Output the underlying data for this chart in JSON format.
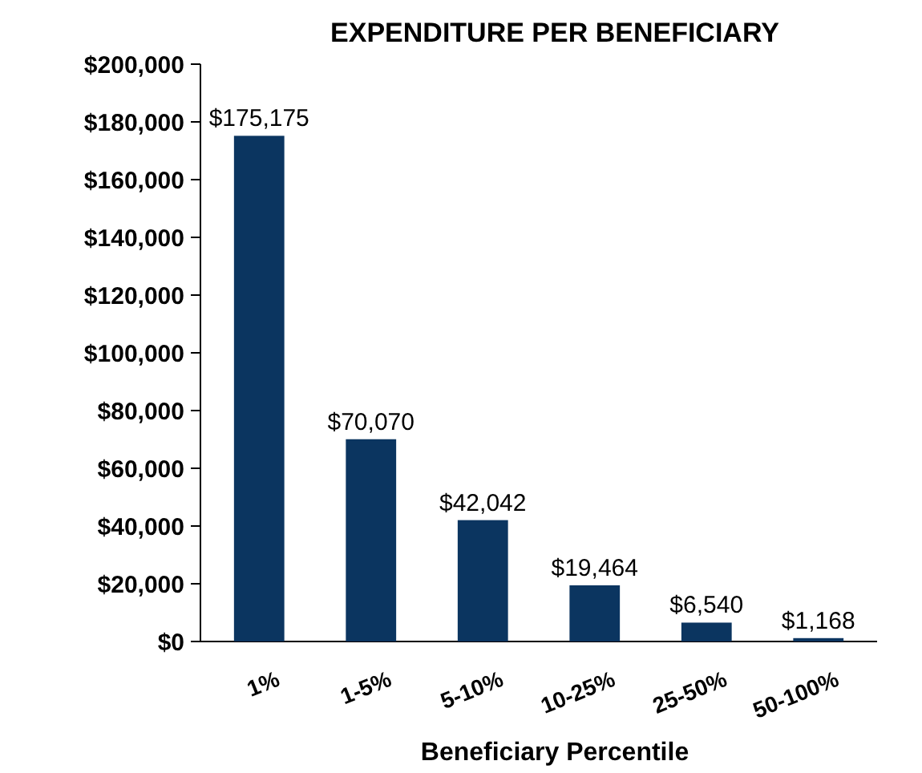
{
  "chart_data": {
    "type": "bar",
    "title": "EXPENDITURE PER BENEFICIARY",
    "xlabel": "Beneficiary Percentile",
    "categories": [
      "1%",
      "1-5%",
      "5-10%",
      "10-25%",
      "25-50%",
      "50-100%"
    ],
    "values": [
      175175,
      70070,
      42042,
      19464,
      6540,
      1168
    ],
    "value_labels": [
      "$175,175",
      "$70,070",
      "$42,042",
      "$19,464",
      "$6,540",
      "$1,168"
    ],
    "color": "#0b3560",
    "ylim": [
      0,
      200000
    ],
    "yticks": [
      {
        "value": 0,
        "label": "$0"
      },
      {
        "value": 20000,
        "label": "$20,000"
      },
      {
        "value": 40000,
        "label": "$40,000"
      },
      {
        "value": 60000,
        "label": "$60,000"
      },
      {
        "value": 80000,
        "label": "$80,000"
      },
      {
        "value": 100000,
        "label": "$100,000"
      },
      {
        "value": 120000,
        "label": "$120,000"
      },
      {
        "value": 140000,
        "label": "$140,000"
      },
      {
        "value": 160000,
        "label": "$160,000"
      },
      {
        "value": 180000,
        "label": "$180,000"
      },
      {
        "value": 200000,
        "label": "$200,000"
      }
    ],
    "grid": false
  }
}
